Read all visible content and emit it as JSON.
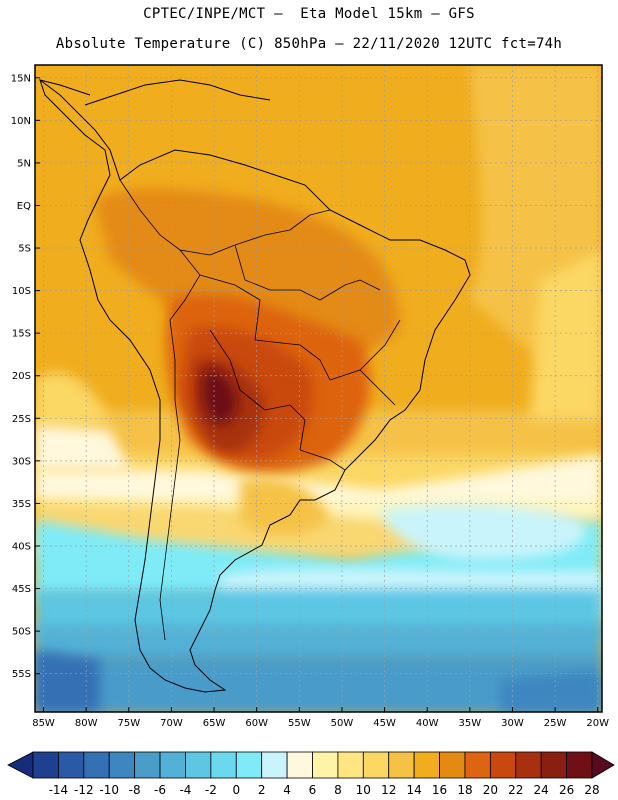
{
  "header": {
    "line1": "CPTEC/INPE/MCT –  Eta Model 15km – GFS",
    "line2": "Absolute Temperature (C) 850hPa – 22/11/2020 12UTC fct=74h"
  },
  "map": {
    "lat_labels": [
      "15N",
      "10N",
      "5N",
      "EQ",
      "5S",
      "10S",
      "15S",
      "20S",
      "25S",
      "30S",
      "35S",
      "40S",
      "45S",
      "50S",
      "55S"
    ],
    "lon_labels": [
      "85W",
      "80W",
      "75W",
      "70W",
      "65W",
      "60W",
      "55W",
      "50W",
      "45W",
      "40W",
      "35W",
      "30W",
      "25W",
      "20W"
    ]
  },
  "colorbar": {
    "labels": [
      "-14",
      "-12",
      "-10",
      "-8",
      "-6",
      "-4",
      "-2",
      "0",
      "2",
      "4",
      "6",
      "8",
      "10",
      "12",
      "14",
      "16",
      "18",
      "20",
      "22",
      "24",
      "26",
      "28"
    ],
    "colors": [
      "#1f3f8f",
      "#2a5aa6",
      "#3470b4",
      "#3d86bf",
      "#4a9cc9",
      "#52b1d6",
      "#5cc6e3",
      "#6ad9ee",
      "#7eebf7",
      "#c9f4fb",
      "#fff8dc",
      "#fff3a8",
      "#ffe680",
      "#fbd764",
      "#f5c246",
      "#f0ad1e",
      "#e48a12",
      "#dd6410",
      "#c9480e",
      "#a8300e",
      "#8a1e10",
      "#6e1014"
    ],
    "under_color": "#182c7c",
    "over_color": "#5a0a1e"
  }
}
